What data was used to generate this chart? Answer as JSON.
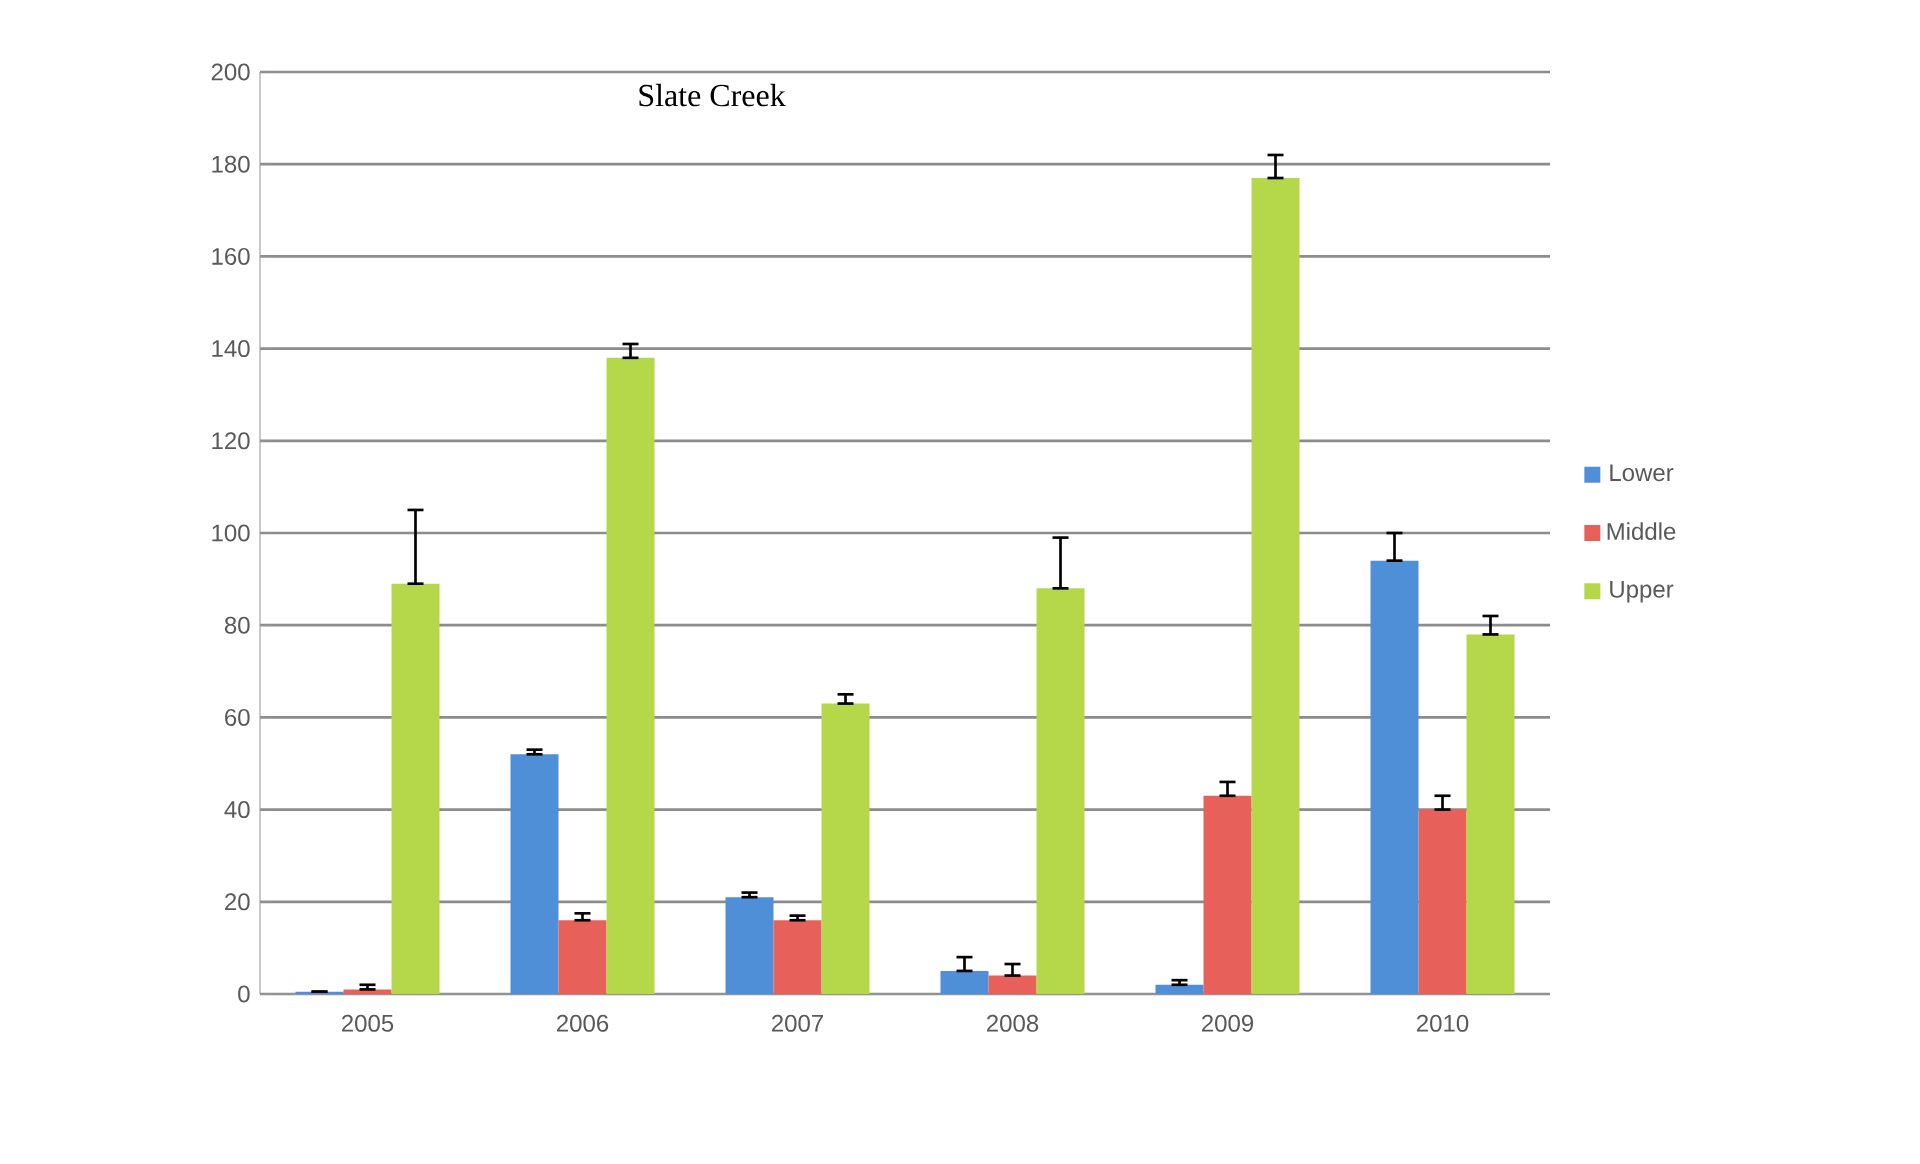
{
  "chart_data": {
    "type": "bar",
    "title": "Slate Creek",
    "categories": [
      "2005",
      "2006",
      "2007",
      "2008",
      "2009",
      "2010"
    ],
    "series": [
      {
        "name": "Lower",
        "color": "#4f8fd8",
        "values": [
          0.5,
          52,
          21,
          5,
          2,
          94
        ],
        "errors": [
          null,
          [
            52,
            53
          ],
          [
            21,
            22
          ],
          [
            5,
            8
          ],
          [
            2,
            3
          ],
          [
            94,
            100
          ]
        ]
      },
      {
        "name": "Middle",
        "color": "#e8605a",
        "values": [
          1,
          16,
          16,
          4,
          43,
          40
        ],
        "errors": [
          [
            1,
            2
          ],
          [
            16,
            17.5
          ],
          [
            16,
            17
          ],
          [
            4,
            6.5
          ],
          [
            43,
            46
          ],
          [
            40,
            43
          ]
        ]
      },
      {
        "name": "Upper",
        "color": "#b5d84a",
        "values": [
          89,
          138,
          63,
          88,
          177,
          78
        ],
        "errors": [
          [
            89,
            105
          ],
          [
            138,
            141
          ],
          [
            63,
            65
          ],
          [
            88,
            99
          ],
          [
            177,
            182
          ],
          [
            78,
            82
          ]
        ]
      }
    ],
    "ylim": [
      0,
      200
    ],
    "yticks": [
      0,
      20,
      40,
      60,
      80,
      100,
      120,
      140,
      160,
      180,
      200
    ],
    "grid": "y",
    "legend": "right"
  }
}
